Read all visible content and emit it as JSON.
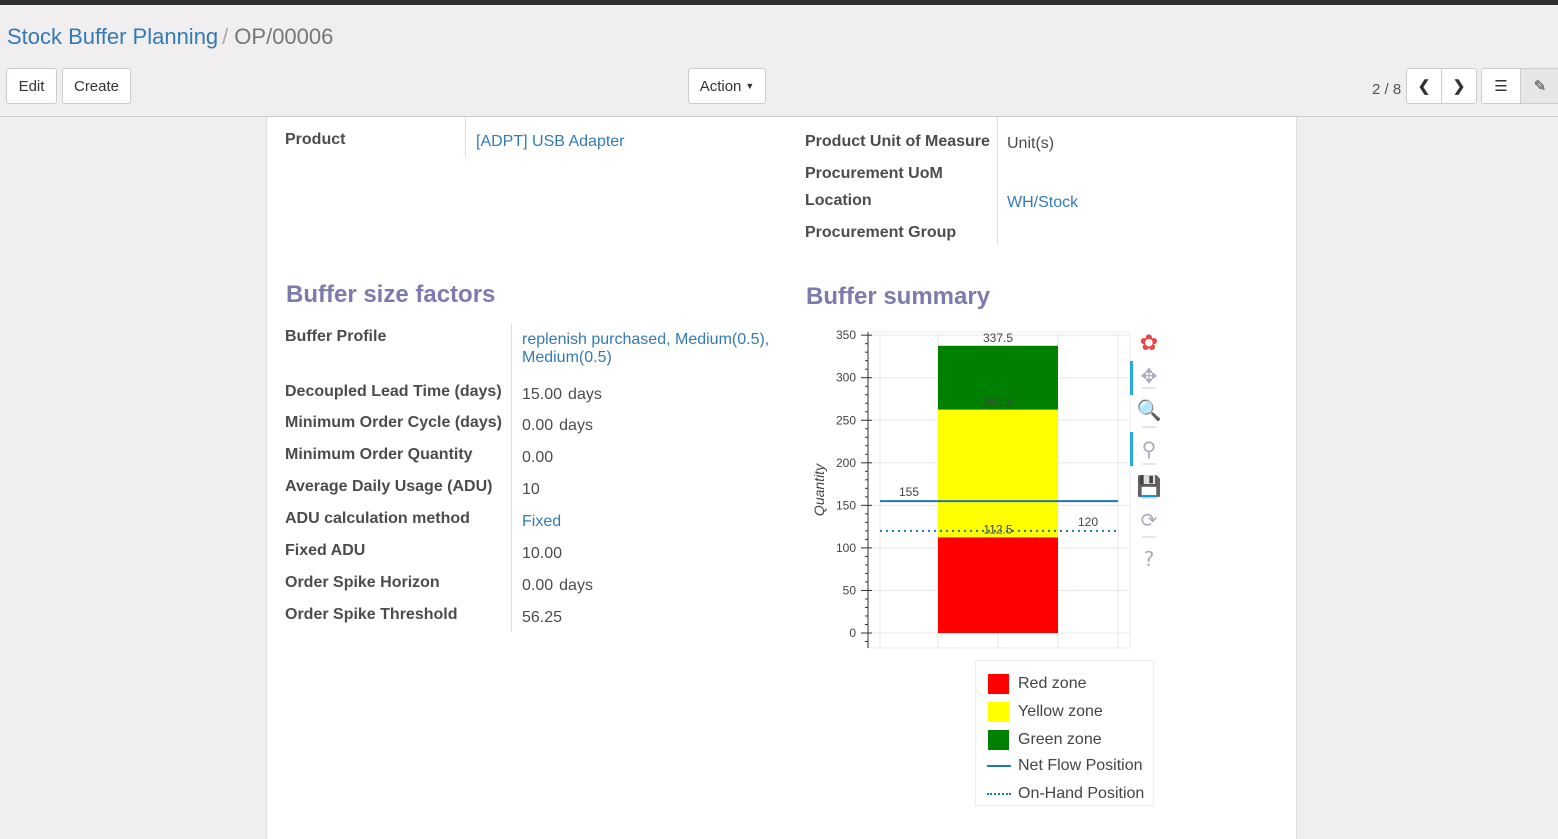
{
  "breadcrumb": {
    "parent": "Stock Buffer Planning",
    "current": "OP/00006"
  },
  "toolbar": {
    "edit": "Edit",
    "create": "Create",
    "action": "Action",
    "pager": "2 / 8"
  },
  "form": {
    "product_label": "Product",
    "product_value": "[ADPT] USB Adapter",
    "uom_label": "Product Unit of Measure",
    "uom_value": "Unit(s)",
    "proc_uom_label": "Procurement UoM",
    "location_label": "Location",
    "location_value": "WH/Stock",
    "proc_group_label": "Procurement Group"
  },
  "factors": {
    "title": "Buffer size factors",
    "rows": [
      {
        "label": "Buffer Profile",
        "value": "replenish purchased, Medium(0.5),",
        "value2": "Medium(0.5)"
      },
      {
        "label": "Decoupled Lead Time (days)",
        "value": "15.00",
        "unit": "days"
      },
      {
        "label": "Minimum Order Cycle (days)",
        "value": "0.00",
        "unit": "days"
      },
      {
        "label": "Minimum Order Quantity",
        "value": "0.00"
      },
      {
        "label": "Average Daily Usage (ADU)",
        "value": "10"
      },
      {
        "label": "ADU calculation method",
        "value": "Fixed"
      },
      {
        "label": "Fixed ADU",
        "value": "10.00"
      },
      {
        "label": "Order Spike Horizon",
        "value": "0.00",
        "unit": "days"
      },
      {
        "label": "Order Spike Threshold",
        "value": "56.25"
      }
    ]
  },
  "summary": {
    "title": "Buffer summary"
  },
  "chart_data": {
    "type": "bar",
    "stacked": true,
    "ylabel": "Quantity",
    "ylim": [
      -10,
      350
    ],
    "yticks": [
      0,
      50,
      100,
      150,
      200,
      250,
      300,
      350
    ],
    "zones": [
      {
        "name": "Red zone",
        "from": 0,
        "to": 112.5,
        "color": "#ff0000",
        "label": "112.5"
      },
      {
        "name": "Yellow zone",
        "from": 112.5,
        "to": 262.5,
        "color": "#ffff00",
        "label": "262.5"
      },
      {
        "name": "Green zone",
        "from": 262.5,
        "to": 337.5,
        "color": "#008000",
        "label": "337.5"
      }
    ],
    "lines": [
      {
        "name": "Net Flow Position",
        "value": 155,
        "label": "155",
        "style": "solid",
        "color": "#1f77b4"
      },
      {
        "name": "On-Hand Position",
        "value": 120,
        "label": "120",
        "style": "dotted",
        "color": "#1f77b4"
      }
    ],
    "grid": true,
    "legend": "bottom"
  },
  "chart_tools": [
    "bokeh-logo-icon",
    "pan-icon",
    "box-zoom-icon",
    "wheel-zoom-icon",
    "save-icon",
    "reset-icon",
    "help-icon"
  ]
}
